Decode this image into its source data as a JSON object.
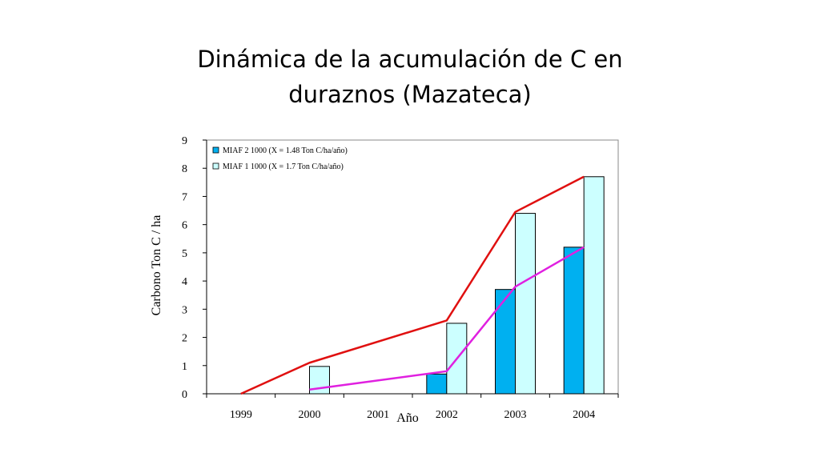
{
  "title_line1": "Dinámica de la acumulación de C en",
  "title_line2": "duraznos (Mazateca)",
  "chart_data": {
    "type": "bar",
    "ylabel": "Carbono Ton C / ha",
    "xlabel": "Año",
    "ylim": [
      0,
      9
    ],
    "yticks": [
      0,
      1,
      2,
      3,
      4,
      5,
      6,
      7,
      8,
      9
    ],
    "categories": [
      "1999",
      "2000",
      "2001",
      "2002",
      "2003",
      "2004"
    ],
    "series": [
      {
        "name": "MIAF 2 1000 (X = 1.48 Ton C/ha/año)",
        "values": [
          null,
          null,
          null,
          0.7,
          3.7,
          5.2
        ],
        "color": "#00b0f0"
      },
      {
        "name": "MIAF 1 1000 (X = 1.7 Ton C/ha/año)",
        "values": [
          null,
          0.97,
          null,
          2.5,
          6.4,
          7.7
        ],
        "color": "#ccffff"
      }
    ],
    "trend_lines": [
      {
        "color": "#e01010",
        "points": [
          [
            1999,
            0.0
          ],
          [
            2000,
            1.1
          ],
          [
            2002,
            2.6
          ],
          [
            2003,
            6.45
          ],
          [
            2004,
            7.7
          ]
        ]
      },
      {
        "color": "#e020e0",
        "points": [
          [
            2000,
            0.15
          ],
          [
            2002,
            0.8
          ],
          [
            2003,
            3.8
          ],
          [
            2004,
            5.2
          ]
        ]
      }
    ],
    "legend_position": "top-left",
    "grid": false
  }
}
